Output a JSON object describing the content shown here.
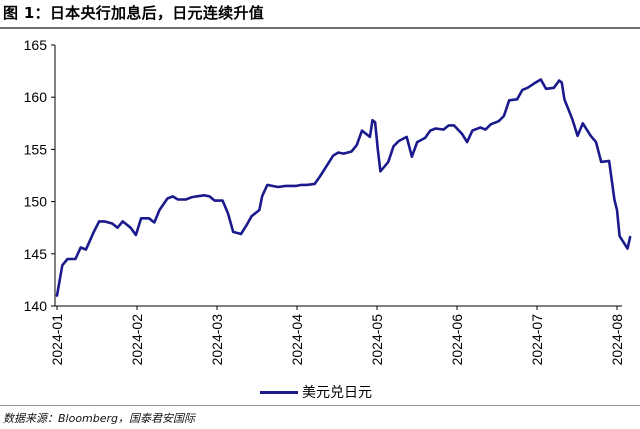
{
  "figure": {
    "title": "图 1：日本央行加息后，日元连续升值",
    "source": "数据来源：Bloomberg，国泰君安国际"
  },
  "chart_data": {
    "type": "line",
    "title": "",
    "xlabel": "",
    "ylabel": "",
    "ylim": [
      140,
      165
    ],
    "yticks": [
      140,
      145,
      150,
      155,
      160,
      165
    ],
    "xticks": [
      "2024-01",
      "2024-02",
      "2024-03",
      "2024-04",
      "2024-05",
      "2024-06",
      "2024-07",
      "2024-08"
    ],
    "grid": false,
    "legend_position": "bottom",
    "series": [
      {
        "name": "美元兑日元",
        "color": "#1a1a8c",
        "x": [
          "2024-01-01",
          "2024-01-03",
          "2024-01-05",
          "2024-01-08",
          "2024-01-10",
          "2024-01-12",
          "2024-01-15",
          "2024-01-17",
          "2024-01-19",
          "2024-01-22",
          "2024-01-24",
          "2024-01-26",
          "2024-01-29",
          "2024-01-31",
          "2024-02-02",
          "2024-02-05",
          "2024-02-07",
          "2024-02-09",
          "2024-02-12",
          "2024-02-14",
          "2024-02-16",
          "2024-02-19",
          "2024-02-21",
          "2024-02-23",
          "2024-02-26",
          "2024-02-28",
          "2024-03-01",
          "2024-03-04",
          "2024-03-06",
          "2024-03-08",
          "2024-03-11",
          "2024-03-13",
          "2024-03-15",
          "2024-03-18",
          "2024-03-19",
          "2024-03-21",
          "2024-03-25",
          "2024-03-28",
          "2024-04-01",
          "2024-04-03",
          "2024-04-05",
          "2024-04-08",
          "2024-04-10",
          "2024-04-12",
          "2024-04-15",
          "2024-04-17",
          "2024-04-19",
          "2024-04-22",
          "2024-04-24",
          "2024-04-26",
          "2024-04-29",
          "2024-04-30",
          "2024-05-01",
          "2024-05-02",
          "2024-05-03",
          "2024-05-06",
          "2024-05-08",
          "2024-05-10",
          "2024-05-13",
          "2024-05-15",
          "2024-05-17",
          "2024-05-20",
          "2024-05-22",
          "2024-05-24",
          "2024-05-27",
          "2024-05-29",
          "2024-05-31",
          "2024-06-03",
          "2024-06-05",
          "2024-06-07",
          "2024-06-10",
          "2024-06-12",
          "2024-06-14",
          "2024-06-17",
          "2024-06-19",
          "2024-06-21",
          "2024-06-24",
          "2024-06-26",
          "2024-06-28",
          "2024-07-01",
          "2024-07-03",
          "2024-07-05",
          "2024-07-08",
          "2024-07-10",
          "2024-07-11",
          "2024-07-12",
          "2024-07-15",
          "2024-07-17",
          "2024-07-19",
          "2024-07-22",
          "2024-07-24",
          "2024-07-26",
          "2024-07-29",
          "2024-07-31",
          "2024-08-01",
          "2024-08-02",
          "2024-08-05",
          "2024-08-06"
        ],
        "values": [
          141.0,
          143.9,
          144.5,
          144.5,
          145.6,
          145.4,
          147.1,
          148.1,
          148.1,
          147.9,
          147.5,
          148.1,
          147.5,
          146.8,
          148.4,
          148.4,
          148.0,
          149.2,
          150.3,
          150.5,
          150.2,
          150.2,
          150.4,
          150.5,
          150.6,
          150.5,
          150.1,
          150.1,
          148.9,
          147.1,
          146.9,
          147.7,
          148.6,
          149.2,
          150.5,
          151.6,
          151.4,
          151.5,
          151.5,
          151.6,
          151.6,
          151.7,
          152.4,
          153.2,
          154.4,
          154.7,
          154.6,
          154.8,
          155.4,
          156.8,
          156.2,
          157.8,
          157.6,
          155.0,
          152.9,
          153.8,
          155.3,
          155.8,
          156.2,
          154.3,
          155.7,
          156.1,
          156.8,
          157.0,
          156.9,
          157.3,
          157.3,
          156.5,
          155.7,
          156.8,
          157.1,
          156.9,
          157.4,
          157.7,
          158.2,
          159.7,
          159.8,
          160.7,
          160.9,
          161.4,
          161.7,
          160.8,
          160.9,
          161.6,
          161.4,
          159.8,
          157.9,
          156.3,
          157.5,
          156.3,
          155.7,
          153.8,
          153.9,
          150.2,
          149.2,
          146.7,
          145.5,
          146.6
        ]
      }
    ]
  }
}
